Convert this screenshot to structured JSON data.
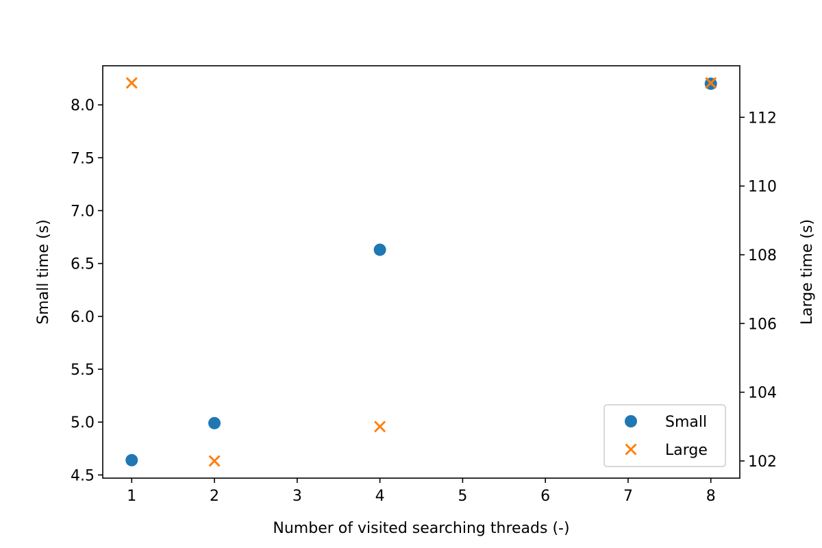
{
  "chart_data": {
    "type": "scatter",
    "title": "",
    "xlabel": "Number of visited searching threads (-)",
    "ylabel": "Small time (s)",
    "y2label": "Large time (s)",
    "xlim": [
      0.65,
      8.35
    ],
    "ylim": [
      4.47,
      8.37
    ],
    "y2lim": [
      101.5,
      113.5
    ],
    "xticks": [
      1,
      2,
      3,
      4,
      5,
      6,
      7,
      8
    ],
    "yticks": [
      4.5,
      5.0,
      5.5,
      6.0,
      6.5,
      7.0,
      7.5,
      8.0
    ],
    "y2ticks": [
      102,
      104,
      106,
      108,
      110,
      112
    ],
    "xtick_labels": [
      "1",
      "2",
      "3",
      "4",
      "5",
      "6",
      "7",
      "8"
    ],
    "ytick_labels": [
      "4.5",
      "5.0",
      "5.5",
      "6.0",
      "6.5",
      "7.0",
      "7.5",
      "8.0"
    ],
    "y2tick_labels": [
      "102",
      "104",
      "106",
      "108",
      "110",
      "112"
    ],
    "grid": false,
    "legend_position": "lower-right",
    "series": [
      {
        "name": "Small",
        "axis": "left",
        "marker": "circle",
        "color": "#1f77b4",
        "x": [
          1,
          2,
          4,
          8
        ],
        "y": [
          4.64,
          4.99,
          6.63,
          8.2
        ]
      },
      {
        "name": "Large",
        "axis": "right",
        "marker": "x",
        "color": "#ff7f0e",
        "x": [
          1,
          2,
          4,
          8
        ],
        "y": [
          113.0,
          102.0,
          103.0,
          113.0
        ]
      }
    ]
  }
}
